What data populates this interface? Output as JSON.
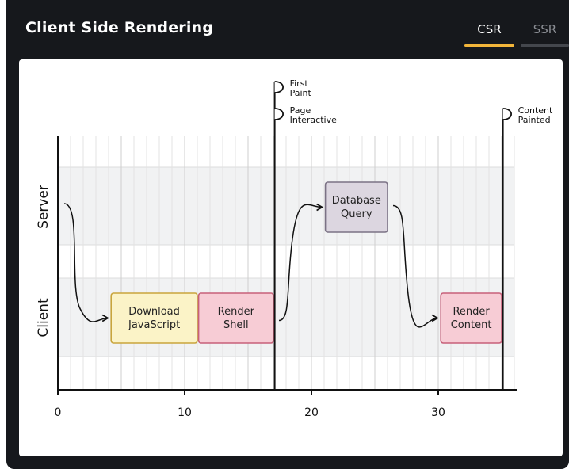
{
  "header": {
    "title": "Client Side Rendering",
    "tabs": [
      {
        "label": "CSR",
        "active": true
      },
      {
        "label": "SSR",
        "active": false
      }
    ]
  },
  "diagram": {
    "lanes": [
      "Server",
      "Client"
    ],
    "axis_ticks": [
      "0",
      "10",
      "20",
      "30"
    ],
    "axis_min": 0,
    "axis_max": 36,
    "blocks": [
      {
        "id": "download-js",
        "lines": [
          "Download",
          "JavaScript"
        ],
        "lane": "Client",
        "start": 4.2,
        "end": 11,
        "fill": "#fbf3c7",
        "stroke": "#c9a53c"
      },
      {
        "id": "render-shell",
        "lines": [
          "Render",
          "Shell"
        ],
        "lane": "Client",
        "start": 11.1,
        "end": 17.0,
        "fill": "#f7ccd5",
        "stroke": "#c7607a"
      },
      {
        "id": "database-query",
        "lines": [
          "Database",
          "Query"
        ],
        "lane": "Server",
        "start": 21.1,
        "end": 26.0,
        "fill": "#dcd6e0",
        "stroke": "#7b7285"
      },
      {
        "id": "render-content",
        "lines": [
          "Render",
          "Content"
        ],
        "lane": "Client",
        "start": 30.2,
        "end": 35.0,
        "fill": "#f7ccd5",
        "stroke": "#c7607a"
      }
    ],
    "markers": [
      {
        "id": "first-paint",
        "at": 17.1,
        "flags": [
          [
            "First",
            "Paint"
          ],
          [
            "Page",
            "Interactive"
          ]
        ]
      },
      {
        "id": "content-painted",
        "at": 35.1,
        "flags": [
          [
            "Content",
            "Painted"
          ]
        ]
      }
    ],
    "colors": {
      "lane_band": "#f1f2f3",
      "grid": "#dcdcdc",
      "ink": "#111111"
    }
  }
}
